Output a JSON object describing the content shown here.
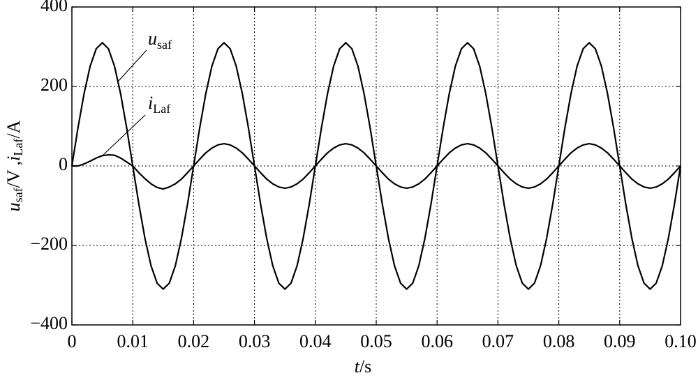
{
  "chart_data": {
    "type": "line",
    "x": [
      0,
      0.001,
      0.002,
      0.003,
      0.004,
      0.005,
      0.006,
      0.007,
      0.008,
      0.009,
      0.01,
      0.011,
      0.012,
      0.013,
      0.014,
      0.015,
      0.016,
      0.017,
      0.018,
      0.019,
      0.02,
      0.021,
      0.022,
      0.023,
      0.024,
      0.025,
      0.026,
      0.027,
      0.028,
      0.029,
      0.03,
      0.031,
      0.032,
      0.033,
      0.034,
      0.035,
      0.036,
      0.037,
      0.038,
      0.039,
      0.04,
      0.041,
      0.042,
      0.043,
      0.044,
      0.045,
      0.046,
      0.047,
      0.048,
      0.049,
      0.05,
      0.051,
      0.052,
      0.053,
      0.054,
      0.055,
      0.056,
      0.057,
      0.058,
      0.059,
      0.06,
      0.061,
      0.062,
      0.063,
      0.064,
      0.065,
      0.066,
      0.067,
      0.068,
      0.069,
      0.07,
      0.071,
      0.072,
      0.073,
      0.074,
      0.075,
      0.076,
      0.077,
      0.078,
      0.079,
      0.08,
      0.081,
      0.082,
      0.083,
      0.084,
      0.085,
      0.086,
      0.087,
      0.088,
      0.089,
      0.09,
      0.091,
      0.092,
      0.093,
      0.094,
      0.095,
      0.096,
      0.097,
      0.098,
      0.099,
      0.1
    ],
    "series": [
      {
        "name": "u_saf",
        "color": "#000000",
        "values": [
          0,
          96,
          182,
          251,
          295,
          310,
          295,
          251,
          182,
          96,
          0,
          -96,
          -182,
          -251,
          -295,
          -310,
          -295,
          -251,
          -182,
          -96,
          0,
          96,
          182,
          251,
          295,
          310,
          295,
          251,
          182,
          96,
          0,
          -96,
          -182,
          -251,
          -295,
          -310,
          -295,
          -251,
          -182,
          -96,
          0,
          96,
          182,
          251,
          295,
          310,
          295,
          251,
          182,
          96,
          0,
          -96,
          -182,
          -251,
          -295,
          -310,
          -295,
          -251,
          -182,
          -96,
          0,
          96,
          182,
          251,
          295,
          310,
          295,
          251,
          182,
          96,
          0,
          -96,
          -182,
          -251,
          -295,
          -310,
          -295,
          -251,
          -182,
          -96,
          0,
          96,
          182,
          251,
          295,
          310,
          295,
          251,
          182,
          96,
          0,
          -96,
          -182,
          -251,
          -295,
          -310,
          -295,
          -251,
          -182,
          -96,
          0
        ]
      },
      {
        "name": "i_Laf",
        "color": "#000000",
        "values": [
          0,
          0,
          5,
          12,
          20,
          26,
          28,
          27,
          20,
          10,
          0,
          -17,
          -32,
          -45,
          -54,
          -58,
          -53,
          -45,
          -33,
          -17,
          0,
          17,
          33,
          45,
          53,
          56,
          53,
          45,
          33,
          17,
          0,
          -17,
          -33,
          -45,
          -53,
          -56,
          -53,
          -45,
          -33,
          -17,
          0,
          17,
          33,
          45,
          53,
          56,
          53,
          45,
          33,
          17,
          0,
          -17,
          -33,
          -45,
          -53,
          -56,
          -53,
          -45,
          -33,
          -17,
          0,
          17,
          33,
          45,
          53,
          56,
          53,
          45,
          33,
          17,
          0,
          -17,
          -33,
          -45,
          -53,
          -56,
          -53,
          -45,
          -33,
          -17,
          0,
          17,
          33,
          45,
          53,
          56,
          53,
          45,
          33,
          17,
          0,
          -17,
          -33,
          -45,
          -53,
          -56,
          -53,
          -45,
          -33,
          -17,
          0
        ]
      }
    ],
    "annotations": [
      {
        "text": "u",
        "sub": "saf"
      },
      {
        "text": "i",
        "sub": "Laf"
      }
    ],
    "xlabel": {
      "var": "t",
      "unit": "/s"
    },
    "ylabel": [
      "u",
      "saf",
      "/V ,",
      "i",
      "Laf",
      "/A"
    ],
    "xlim": [
      0,
      0.1
    ],
    "xticks": [
      0,
      0.01,
      0.02,
      0.03,
      0.04,
      0.05,
      0.06,
      0.07,
      0.08,
      0.09,
      {
        "value": 0.1,
        "label": "0.10"
      }
    ],
    "ylim": [
      -400,
      400
    ],
    "yticks": [
      {
        "value": -400,
        "label": "−400"
      },
      {
        "value": -200,
        "label": "−200"
      },
      0,
      200,
      400
    ],
    "grid": true
  }
}
